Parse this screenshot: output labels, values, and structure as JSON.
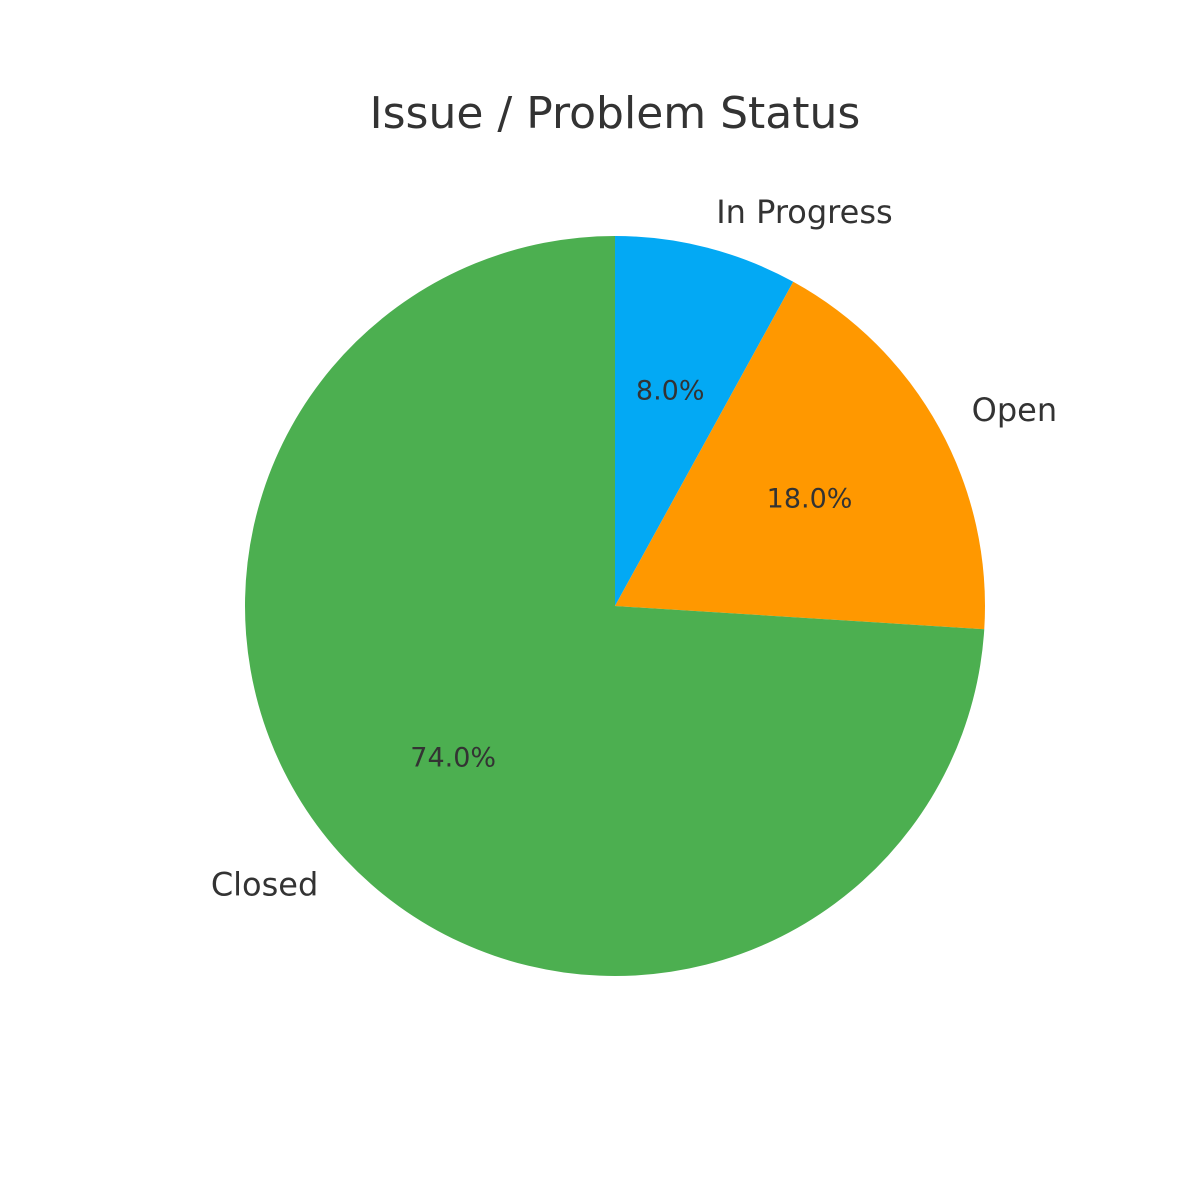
{
  "chart_data": {
    "type": "pie",
    "title": "Issue / Problem Status",
    "categories": [
      "In Progress",
      "Open",
      "Closed"
    ],
    "values": [
      8.0,
      18.0,
      74.0
    ],
    "value_labels": [
      "8.0%",
      "18.0%",
      "74.0%"
    ],
    "colors": [
      "#03A9F4",
      "#FF9800",
      "#4CAF50"
    ],
    "start_angle": "top",
    "direction": "clockwise",
    "legend": "none"
  }
}
